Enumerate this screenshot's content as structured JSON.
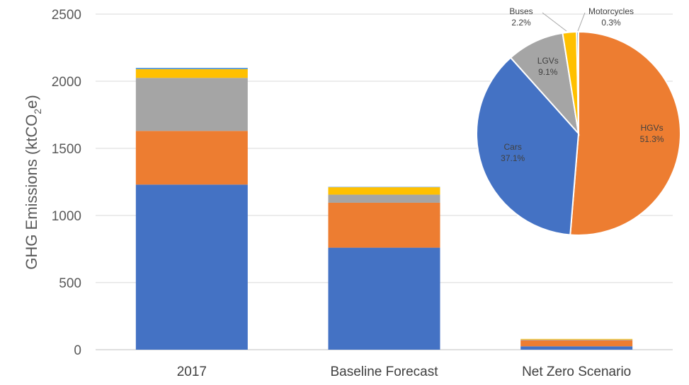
{
  "chart_data": [
    {
      "type": "bar",
      "stacked": true,
      "categories": [
        "2017",
        "Baseline Forecast",
        "Net Zero Scenario"
      ],
      "series": [
        {
          "color": "#4472C4",
          "values": [
            1230,
            760,
            25
          ]
        },
        {
          "color": "#ED7D31",
          "values": [
            400,
            335,
            45
          ]
        },
        {
          "color": "#A5A5A5",
          "values": [
            395,
            60,
            5
          ]
        },
        {
          "color": "#FFC000",
          "values": [
            65,
            55,
            5
          ]
        },
        {
          "color": "#5B9BD5",
          "values": [
            10,
            3,
            0
          ]
        }
      ],
      "ylabel": "GHG Emissions (ktCO",
      "ylabel_sub": "2",
      "ylabel_tail": "e)",
      "yticks": [
        "0",
        "500",
        "1000",
        "1500",
        "2000",
        "2500"
      ],
      "ylim": [
        0,
        2500
      ],
      "grid": true
    },
    {
      "type": "pie",
      "slices": [
        {
          "label": "HGVs",
          "pct_text": "51.3%",
          "value": 51.3,
          "color": "#ED7D31"
        },
        {
          "label": "Cars",
          "pct_text": "37.1%",
          "value": 37.1,
          "color": "#4472C4"
        },
        {
          "label": "LGVs",
          "pct_text": "9.1%",
          "value": 9.1,
          "color": "#A5A5A5"
        },
        {
          "label": "Buses",
          "pct_text": "2.2%",
          "value": 2.2,
          "color": "#FFC000"
        },
        {
          "label": "Motorcycles",
          "pct_text": "0.3%",
          "value": 0.3,
          "color": "#5B9BD5"
        }
      ]
    }
  ]
}
